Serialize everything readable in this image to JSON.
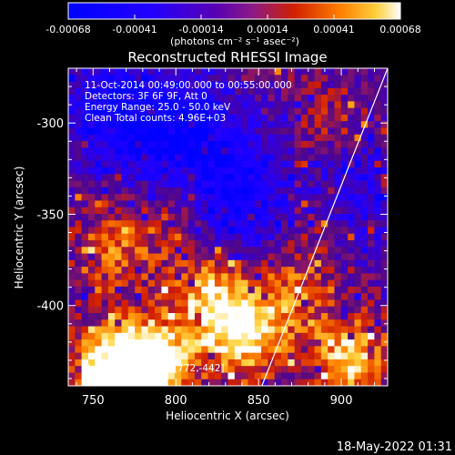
{
  "chart_data": {
    "type": "heatmap",
    "title": "Reconstructed RHESSI Image",
    "xlabel": "Heliocentric X (arcsec)",
    "ylabel": "Heliocentric Y (arcsec)",
    "xlim": [
      735,
      928
    ],
    "ylim": [
      -444,
      -270
    ],
    "x_ticks": [
      750,
      800,
      850,
      900
    ],
    "y_ticks": [
      -300,
      -350,
      -400
    ],
    "colorbar": {
      "ticks": [
        "-0.00068",
        "-0.00041",
        "-0.00014",
        "0.00014",
        "0.00041",
        "0.00068"
      ],
      "unit_label": "(photons cm⁻² s⁻¹ asec⁻²)",
      "range": [
        -0.00068,
        0.00068
      ]
    },
    "annotations": [
      "11-Oct-2014 00:49:00.000 to 00:55:00.000",
      "Detectors: 3F 6F 9F, Att 0",
      "Energy Range: 25.0 - 50.0 keV",
      "Clean     Total counts: 4.96E+03"
    ],
    "peak_text": "Position of Peak = [772,-442]",
    "limb_line": {
      "x": [
        852,
        928
      ],
      "y": [
        -444,
        -270
      ]
    },
    "hot_spots": [
      {
        "x": 760,
        "y": -435,
        "v": 0.00068
      },
      {
        "x": 790,
        "y": -430,
        "v": 0.00055
      },
      {
        "x": 772,
        "y": -442,
        "v": 0.00068
      },
      {
        "x": 830,
        "y": -405,
        "v": 0.0005
      },
      {
        "x": 845,
        "y": -420,
        "v": 0.00045
      },
      {
        "x": 815,
        "y": -390,
        "v": 0.0003
      },
      {
        "x": 870,
        "y": -395,
        "v": 0.00035
      },
      {
        "x": 765,
        "y": -370,
        "v": 0.00035
      },
      {
        "x": 905,
        "y": -430,
        "v": 0.0006
      },
      {
        "x": 795,
        "y": -345,
        "v": 0.0003
      },
      {
        "x": 885,
        "y": -355,
        "v": 0.00025
      },
      {
        "x": 890,
        "y": -300,
        "v": 0.00018
      }
    ],
    "cold_spots": [
      {
        "x": 760,
        "y": -290,
        "v": -0.00045
      },
      {
        "x": 810,
        "y": -300,
        "v": -0.0004
      },
      {
        "x": 840,
        "y": -340,
        "v": -0.0005
      },
      {
        "x": 790,
        "y": -320,
        "v": -0.00035
      },
      {
        "x": 905,
        "y": -340,
        "v": -0.00035
      }
    ]
  },
  "footer": {
    "timestamp": "18-May-2022 01:31"
  }
}
